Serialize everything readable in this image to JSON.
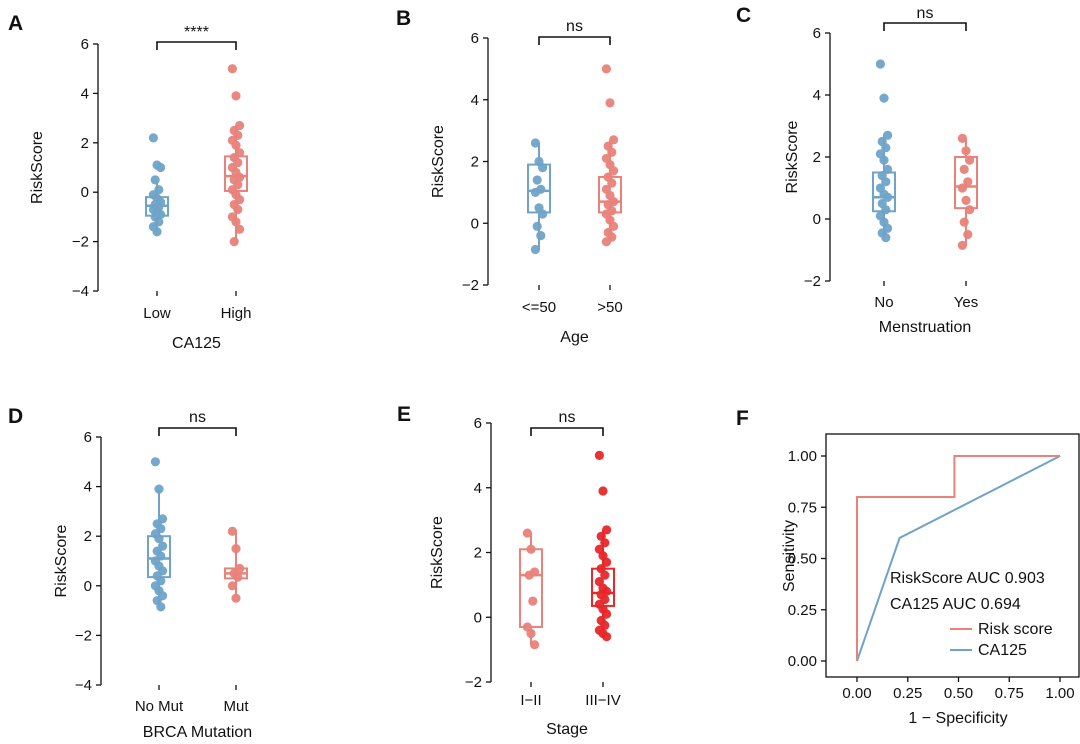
{
  "chart_data": [
    {
      "panel": "A",
      "type": "boxplot",
      "ylabel": "RiskScore",
      "xlabel": "CA125",
      "ylim": [
        -4,
        6
      ],
      "yticks": [
        "−4",
        "−2",
        "0",
        "2",
        "4",
        "6"
      ],
      "significance": "****",
      "groups": [
        {
          "label": "Low",
          "color": "#6fa3c8",
          "box": {
            "q1": -0.95,
            "median": -0.55,
            "q3": -0.2,
            "whisker_low": -1.6,
            "whisker_high": 0.45
          },
          "points": [
            2.2,
            1.1,
            1.0,
            0.5,
            0.1,
            -0.1,
            -0.25,
            -0.4,
            -0.5,
            -0.6,
            -0.7,
            -0.8,
            -0.9,
            -1.0,
            -1.2,
            -1.4,
            -1.6
          ]
        },
        {
          "label": "High",
          "color": "#e8827a",
          "box": {
            "q1": 0.05,
            "median": 0.65,
            "q3": 1.45,
            "whisker_low": -2.0,
            "whisker_high": 2.7
          },
          "points": [
            5.0,
            3.9,
            2.7,
            2.5,
            2.3,
            2.1,
            1.9,
            1.6,
            1.4,
            1.2,
            1.0,
            0.8,
            0.6,
            0.5,
            0.3,
            0.1,
            -0.1,
            -0.3,
            -0.5,
            -0.7,
            -1.0,
            -1.2,
            -1.5,
            -2.0
          ]
        }
      ]
    },
    {
      "panel": "B",
      "type": "boxplot",
      "ylabel": "RiskScore",
      "xlabel": "Age",
      "ylim": [
        -2,
        6
      ],
      "yticks": [
        "−2",
        "0",
        "2",
        "4",
        "6"
      ],
      "significance": "ns",
      "groups": [
        {
          "label": "<=50",
          "color": "#6fa3c8",
          "box": {
            "q1": 0.35,
            "median": 1.05,
            "q3": 1.9,
            "whisker_low": -0.85,
            "whisker_high": 2.6
          },
          "points": [
            2.6,
            2.0,
            1.8,
            1.4,
            1.1,
            1.0,
            0.5,
            0.3,
            -0.1,
            -0.4,
            -0.85
          ]
        },
        {
          "label": ">50",
          "color": "#e8827a",
          "box": {
            "q1": 0.35,
            "median": 0.7,
            "q3": 1.5,
            "whisker_low": -0.6,
            "whisker_high": 2.7
          },
          "points": [
            5.0,
            3.9,
            2.7,
            2.5,
            2.3,
            2.1,
            1.9,
            1.7,
            1.5,
            1.3,
            1.1,
            0.9,
            0.7,
            0.6,
            0.4,
            0.3,
            0.1,
            -0.1,
            -0.3,
            -0.45,
            -0.6
          ]
        }
      ]
    },
    {
      "panel": "C",
      "type": "boxplot",
      "ylabel": "RiskScore",
      "xlabel": "Menstruation",
      "ylim": [
        -2,
        6
      ],
      "yticks": [
        "−2",
        "0",
        "2",
        "4",
        "6"
      ],
      "significance": "ns",
      "groups": [
        {
          "label": "No",
          "color": "#6fa3c8",
          "box": {
            "q1": 0.25,
            "median": 0.7,
            "q3": 1.5,
            "whisker_low": -0.6,
            "whisker_high": 2.7
          },
          "points": [
            5.0,
            3.9,
            2.7,
            2.5,
            2.3,
            2.1,
            1.9,
            1.6,
            1.4,
            1.2,
            1.0,
            0.8,
            0.7,
            0.5,
            0.3,
            0.1,
            -0.1,
            -0.3,
            -0.45,
            -0.6
          ]
        },
        {
          "label": "Yes",
          "color": "#e8827a",
          "box": {
            "q1": 0.35,
            "median": 1.05,
            "q3": 2.0,
            "whisker_low": -0.85,
            "whisker_high": 2.6
          },
          "points": [
            2.6,
            2.2,
            1.9,
            1.6,
            1.2,
            1.0,
            0.6,
            0.3,
            -0.1,
            -0.5,
            -0.85
          ]
        }
      ]
    },
    {
      "panel": "D",
      "type": "boxplot",
      "ylabel": "RiskScore",
      "xlabel": "BRCA Mutation",
      "ylim": [
        -4,
        6
      ],
      "yticks": [
        "−4",
        "−2",
        "0",
        "2",
        "4",
        "6"
      ],
      "significance": "ns",
      "groups": [
        {
          "label": "No Mut",
          "color": "#6fa3c8",
          "box": {
            "q1": 0.35,
            "median": 1.1,
            "q3": 2.0,
            "whisker_low": -0.85,
            "whisker_high": 3.9
          },
          "points": [
            5.0,
            3.9,
            2.7,
            2.5,
            2.3,
            2.1,
            1.9,
            1.6,
            1.4,
            1.2,
            1.0,
            0.8,
            0.6,
            0.4,
            0.2,
            0.0,
            -0.2,
            -0.4,
            -0.6,
            -0.85
          ]
        },
        {
          "label": "Mut",
          "color": "#e8827a",
          "box": {
            "q1": 0.3,
            "median": 0.5,
            "q3": 0.7,
            "whisker_low": -0.5,
            "whisker_high": 2.2
          },
          "points": [
            2.2,
            1.5,
            0.7,
            0.5,
            0.35,
            0.0,
            -0.5
          ]
        }
      ]
    },
    {
      "panel": "E",
      "type": "boxplot",
      "ylabel": "RiskScore",
      "xlabel": "Stage",
      "ylim": [
        -2,
        6
      ],
      "yticks": [
        "−2",
        "0",
        "2",
        "4",
        "6"
      ],
      "significance": "ns",
      "groups": [
        {
          "label": "I−II",
          "color": "#e8827a",
          "box": {
            "q1": -0.3,
            "median": 1.3,
            "q3": 2.1,
            "whisker_low": -0.85,
            "whisker_high": 2.6
          },
          "points": [
            2.6,
            2.1,
            1.4,
            1.3,
            0.5,
            -0.3,
            -0.5,
            -0.85
          ]
        },
        {
          "label": "III−IV",
          "color": "#e8272a",
          "box": {
            "q1": 0.35,
            "median": 0.75,
            "q3": 1.5,
            "whisker_low": -0.6,
            "whisker_high": 2.7
          },
          "points": [
            5.0,
            3.9,
            2.7,
            2.5,
            2.3,
            2.1,
            1.9,
            1.7,
            1.5,
            1.3,
            1.1,
            0.9,
            0.8,
            0.7,
            0.55,
            0.4,
            0.25,
            0.1,
            -0.1,
            -0.25,
            -0.4,
            -0.5,
            -0.6
          ]
        }
      ]
    },
    {
      "panel": "F",
      "type": "roc",
      "ylabel": "Sensitivity",
      "xlabel": "1 − Specificity",
      "xlim": [
        0,
        1
      ],
      "ylim": [
        0,
        1
      ],
      "xticks": [
        "0.00",
        "0.25",
        "0.50",
        "0.75",
        "1.00"
      ],
      "yticks": [
        "0.00",
        "0.25",
        "0.50",
        "0.75",
        "1.00"
      ],
      "annotations": [
        "RiskScore AUC 0.903",
        "CA125 AUC 0.694"
      ],
      "series": [
        {
          "name": "Risk score",
          "color": "#e8827a",
          "x": [
            0,
            0,
            0.48,
            0.48,
            1.0
          ],
          "y": [
            0,
            0.8,
            0.8,
            1.0,
            1.0
          ]
        },
        {
          "name": "CA125",
          "color": "#6fa3c8",
          "x": [
            0,
            0.21,
            1.0
          ],
          "y": [
            0,
            0.6,
            1.0
          ]
        }
      ]
    }
  ]
}
